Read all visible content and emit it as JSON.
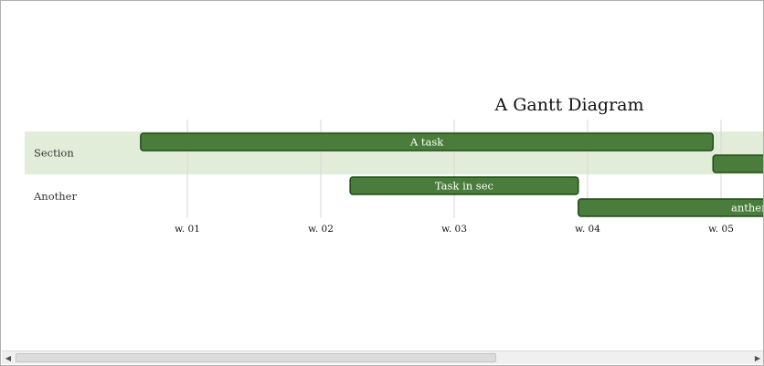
{
  "diagram": {
    "title": "A Gantt Diagram",
    "colors": {
      "section_band": "#e2edd9",
      "task_fill": "#4a7d3b",
      "task_border": "#1e4d15",
      "grid": "#d6d6d6"
    }
  },
  "chart_data": {
    "type": "gantt",
    "title": "A Gantt Diagram",
    "x_ticks": [
      "w. 01",
      "w. 02",
      "w. 03",
      "w. 04",
      "w. 05"
    ],
    "sections": [
      {
        "name": "Section",
        "highlighted": true
      },
      {
        "name": "Another",
        "highlighted": false
      }
    ],
    "tasks": [
      {
        "label": "A task",
        "section": 0,
        "start_week": 0.65,
        "end_week": 4.94
      },
      {
        "label": "",
        "section": 0,
        "start_week": 4.94,
        "end_week": 5.75
      },
      {
        "label": "Task in sec",
        "section": 1,
        "start_week": 2.22,
        "end_week": 3.93
      },
      {
        "label": "anther",
        "section": 1,
        "start_week": 3.93,
        "end_week": 5.75
      }
    ]
  },
  "scrollbar": {
    "left_arrow": "◀",
    "right_arrow": "▶",
    "position": 0.0,
    "visible_fraction": 0.64
  }
}
